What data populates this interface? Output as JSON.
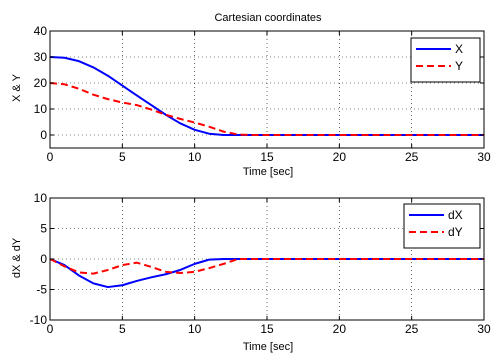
{
  "chart_data": [
    {
      "type": "line",
      "title": "Cartesian coordinates",
      "xlabel": "Time [sec]",
      "ylabel": "X & Y",
      "xlim": [
        0,
        30
      ],
      "ylim": [
        -5,
        40
      ],
      "xticks": [
        0,
        5,
        10,
        15,
        20,
        25,
        30
      ],
      "yticks": [
        0,
        10,
        20,
        30,
        40
      ],
      "grid": true,
      "legend": "top-right",
      "series": [
        {
          "name": "X",
          "color": "#0000ff",
          "style": "solid",
          "x": [
            0,
            1,
            2,
            3,
            4,
            5,
            6,
            7,
            8,
            9,
            10,
            11,
            12,
            13,
            14,
            15,
            20,
            25,
            30
          ],
          "y": [
            30,
            29.7,
            28.4,
            26,
            22.8,
            19,
            15.2,
            11.5,
            7.8,
            4.5,
            2,
            0.5,
            0,
            0,
            0,
            0,
            0,
            0,
            0
          ]
        },
        {
          "name": "Y",
          "color": "#ff0000",
          "style": "dashed",
          "x": [
            0,
            1,
            2,
            3,
            4,
            5,
            6,
            7,
            8,
            9,
            10,
            11,
            12,
            13,
            14,
            15,
            20,
            25,
            30
          ],
          "y": [
            20,
            19.5,
            17.8,
            15.5,
            13.8,
            12.5,
            11.5,
            9.8,
            7.8,
            6.2,
            4.8,
            3.2,
            1.3,
            0.2,
            0,
            0,
            0,
            0,
            0
          ]
        }
      ]
    },
    {
      "type": "line",
      "title": "",
      "xlabel": "Time [sec]",
      "ylabel": "dX & dY",
      "xlim": [
        0,
        30
      ],
      "ylim": [
        -10,
        10
      ],
      "xticks": [
        0,
        5,
        10,
        15,
        20,
        25,
        30
      ],
      "yticks": [
        -10,
        -5,
        0,
        5,
        10
      ],
      "grid": true,
      "legend": "top-right",
      "series": [
        {
          "name": "dX",
          "color": "#0000ff",
          "style": "solid",
          "x": [
            0,
            1,
            2,
            3,
            4,
            5,
            6,
            7,
            8,
            9,
            10,
            11,
            12,
            13,
            15,
            20,
            25,
            30
          ],
          "y": [
            0,
            -1,
            -2.7,
            -4,
            -4.6,
            -4.3,
            -3.6,
            -3,
            -2.5,
            -1.8,
            -0.8,
            -0.1,
            0,
            0,
            0,
            0,
            0,
            0
          ]
        },
        {
          "name": "dY",
          "color": "#ff0000",
          "style": "dashed",
          "x": [
            0,
            1,
            2,
            3,
            4,
            5,
            6,
            7,
            8,
            9,
            10,
            11,
            12,
            13,
            15,
            20,
            25,
            30
          ],
          "y": [
            0,
            -1.2,
            -2.2,
            -2.4,
            -1.8,
            -1,
            -0.6,
            -1.3,
            -2.1,
            -2.3,
            -2.1,
            -1.5,
            -0.8,
            0,
            0,
            0,
            0,
            0
          ]
        }
      ]
    }
  ]
}
